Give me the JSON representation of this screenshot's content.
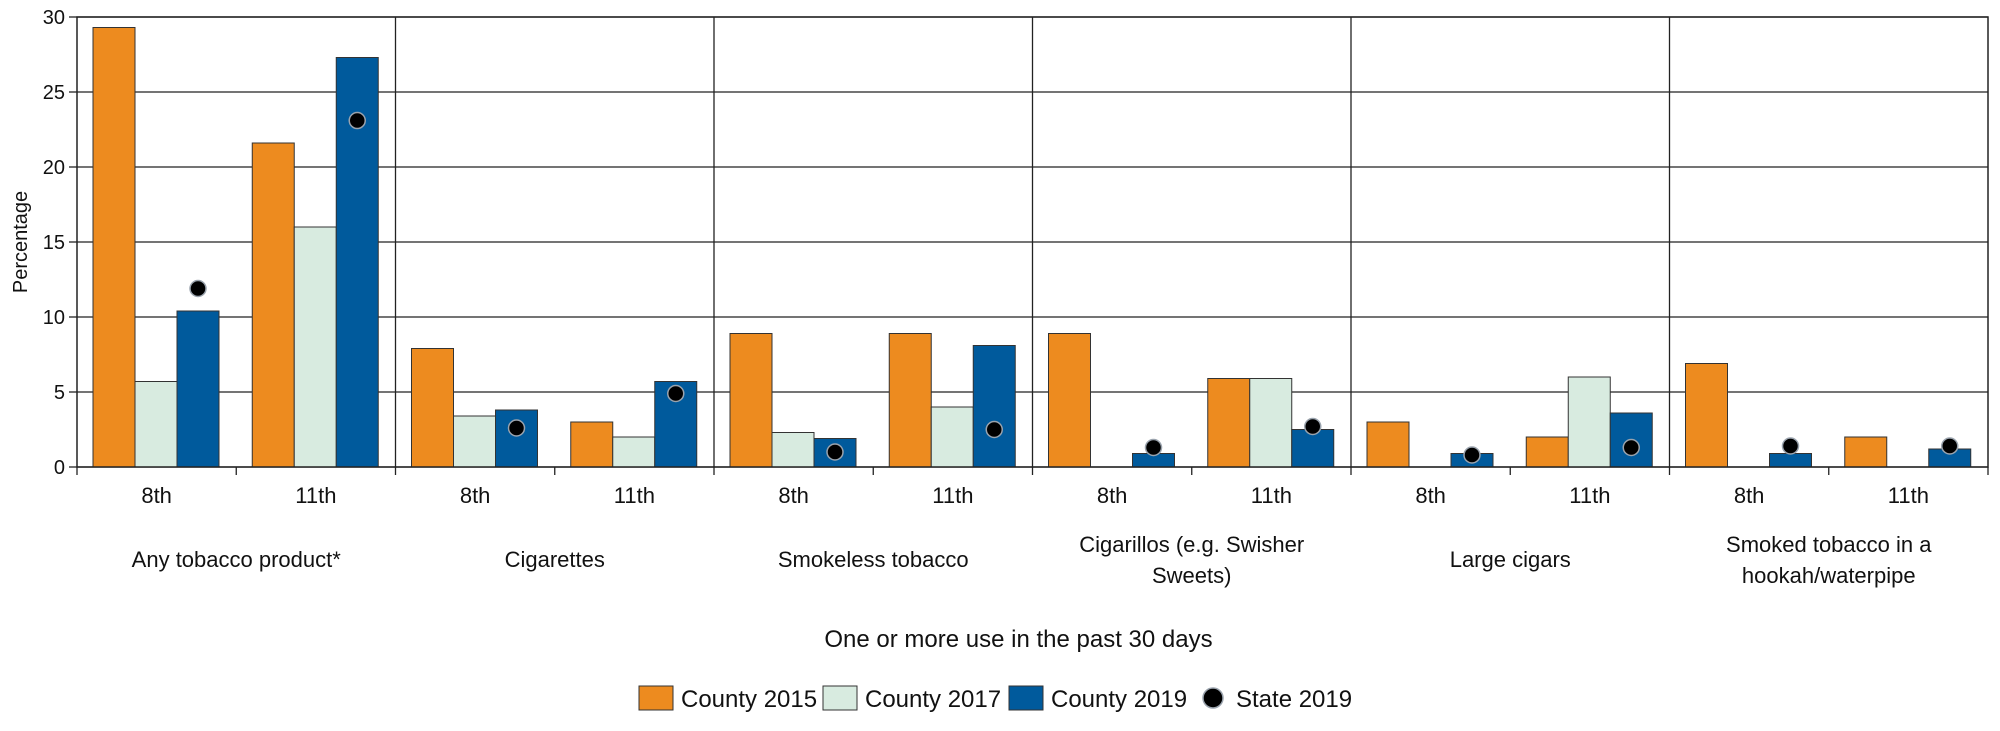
{
  "chart_data": {
    "type": "bar",
    "ylabel": "Percentage",
    "xlabel": "One or more use in the past 30 days",
    "ylim": [
      0,
      30
    ],
    "yticks": [
      "0",
      "5",
      "10",
      "15",
      "20",
      "25",
      "30"
    ],
    "grid": true,
    "legend_position": "bottom-center",
    "groups": [
      {
        "label_lines": [
          "Any tobacco product*"
        ],
        "grades": [
          {
            "grade": "8th",
            "county_2015": 29.3,
            "county_2017": 5.7,
            "county_2019": 10.4,
            "state_2019": 11.9
          },
          {
            "grade": "11th",
            "county_2015": 21.6,
            "county_2017": 16.0,
            "county_2019": 27.3,
            "state_2019": 23.1
          }
        ]
      },
      {
        "label_lines": [
          "Cigarettes"
        ],
        "grades": [
          {
            "grade": "8th",
            "county_2015": 7.9,
            "county_2017": 3.4,
            "county_2019": 3.8,
            "state_2019": 2.6
          },
          {
            "grade": "11th",
            "county_2015": 3.0,
            "county_2017": 2.0,
            "county_2019": 5.7,
            "state_2019": 4.9
          }
        ]
      },
      {
        "label_lines": [
          "Smokeless tobacco"
        ],
        "grades": [
          {
            "grade": "8th",
            "county_2015": 8.9,
            "county_2017": 2.3,
            "county_2019": 1.9,
            "state_2019": 1.0
          },
          {
            "grade": "11th",
            "county_2015": 8.9,
            "county_2017": 4.0,
            "county_2019": 8.1,
            "state_2019": 2.5
          }
        ]
      },
      {
        "label_lines": [
          "Cigarillos (e.g. Swisher",
          "Sweets)"
        ],
        "grades": [
          {
            "grade": "8th",
            "county_2015": 8.9,
            "county_2017": null,
            "county_2019": 0.9,
            "state_2019": 1.3
          },
          {
            "grade": "11th",
            "county_2015": 5.9,
            "county_2017": 5.9,
            "county_2019": 2.5,
            "state_2019": 2.7
          }
        ]
      },
      {
        "label_lines": [
          "Large cigars"
        ],
        "grades": [
          {
            "grade": "8th",
            "county_2015": 3.0,
            "county_2017": null,
            "county_2019": 0.9,
            "state_2019": 0.8
          },
          {
            "grade": "11th",
            "county_2015": 2.0,
            "county_2017": 6.0,
            "county_2019": 3.6,
            "state_2019": 1.3
          }
        ]
      },
      {
        "label_lines": [
          "Smoked tobacco in a",
          "hookah/waterpipe"
        ],
        "grades": [
          {
            "grade": "8th",
            "county_2015": 6.9,
            "county_2017": null,
            "county_2019": 0.9,
            "state_2019": 1.4
          },
          {
            "grade": "11th",
            "county_2015": 2.0,
            "county_2017": null,
            "county_2019": 1.2,
            "state_2019": 1.4
          }
        ]
      }
    ],
    "series": [
      {
        "key": "county_2015",
        "name": "County 2015",
        "color": "#ED8B1F",
        "kind": "bar"
      },
      {
        "key": "county_2017",
        "name": "County 2017",
        "color": "#D8EBE0",
        "kind": "bar"
      },
      {
        "key": "county_2019",
        "name": "County 2019",
        "color": "#005A9C",
        "kind": "bar"
      },
      {
        "key": "state_2019",
        "name": "State 2019",
        "color": "#000000",
        "kind": "point"
      }
    ]
  }
}
